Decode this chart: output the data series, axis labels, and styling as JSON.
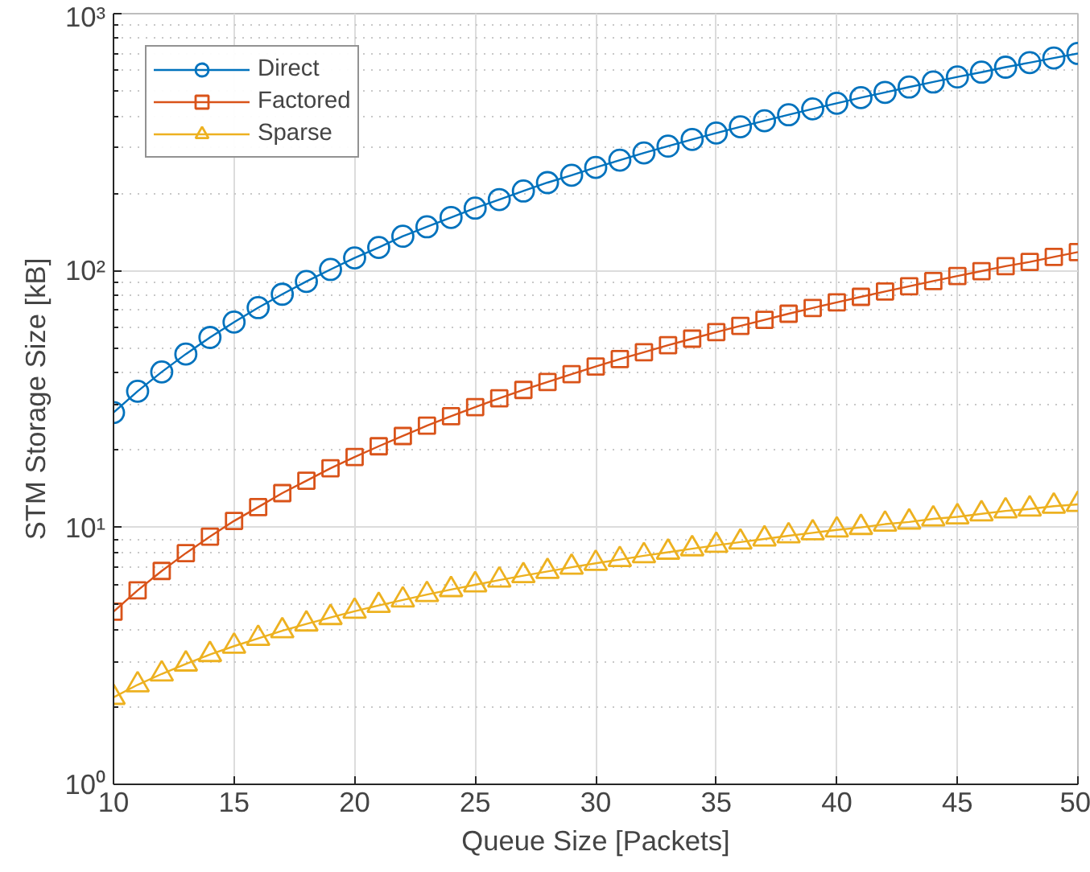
{
  "chart_data": {
    "type": "line",
    "xlabel": "Queue Size [Packets]",
    "ylabel": "STM Storage Size [kB]",
    "x": [
      10,
      11,
      12,
      13,
      14,
      15,
      16,
      17,
      18,
      19,
      20,
      21,
      22,
      23,
      24,
      25,
      26,
      27,
      28,
      29,
      30,
      31,
      32,
      33,
      34,
      35,
      36,
      37,
      38,
      39,
      40,
      41,
      42,
      43,
      44,
      45,
      46,
      47,
      48,
      49,
      50
    ],
    "series": [
      {
        "name": "Direct",
        "color": "#0072bd",
        "marker": "circle",
        "values": [
          28,
          33.9,
          40.3,
          47.3,
          54.9,
          63,
          71.7,
          80.9,
          90.7,
          101,
          112,
          123,
          136,
          148,
          161,
          175,
          189,
          204,
          220,
          235,
          252,
          269,
          287,
          305,
          324,
          343,
          363,
          383,
          404,
          426,
          448,
          471,
          494,
          518,
          542,
          567,
          592,
          619,
          645,
          672,
          700
        ]
      },
      {
        "name": "Factored",
        "color": "#d95319",
        "marker": "square",
        "values": [
          4.7,
          5.69,
          6.77,
          7.94,
          9.21,
          10.6,
          12.0,
          13.6,
          15.2,
          17.0,
          18.8,
          20.7,
          22.7,
          24.9,
          27.1,
          29.4,
          31.8,
          34.3,
          36.8,
          39.5,
          42.3,
          45.2,
          48.1,
          51.2,
          54.3,
          57.6,
          60.9,
          64.3,
          67.9,
          71.5,
          75.2,
          79.0,
          82.9,
          86.9,
          91.0,
          95.2,
          99.5,
          104,
          108,
          113,
          118
        ]
      },
      {
        "name": "Sparse",
        "color": "#edb120",
        "marker": "triangle",
        "values": [
          2.18,
          2.44,
          2.69,
          2.94,
          3.2,
          3.45,
          3.7,
          3.96,
          4.21,
          4.46,
          4.72,
          4.97,
          5.22,
          5.48,
          5.73,
          5.98,
          6.24,
          6.49,
          6.74,
          7.0,
          7.25,
          7.5,
          7.76,
          8.01,
          8.26,
          8.52,
          8.77,
          9.02,
          9.28,
          9.53,
          9.78,
          10.0,
          10.3,
          10.5,
          10.8,
          11.0,
          11.3,
          11.6,
          11.8,
          12.1,
          12.3
        ]
      }
    ],
    "xlim": [
      10,
      50
    ],
    "xticks": [
      10,
      15,
      20,
      25,
      30,
      35,
      40,
      45,
      50
    ],
    "ylim": [
      1,
      1000
    ],
    "yticks": [
      {
        "value": 1,
        "label": "10⁰"
      },
      {
        "value": 10,
        "label": "10¹"
      },
      {
        "value": 100,
        "label": "10²"
      },
      {
        "value": 1000,
        "label": "10³"
      }
    ],
    "log": "y",
    "grid": true,
    "legend": "top left",
    "line_style": "solid"
  }
}
